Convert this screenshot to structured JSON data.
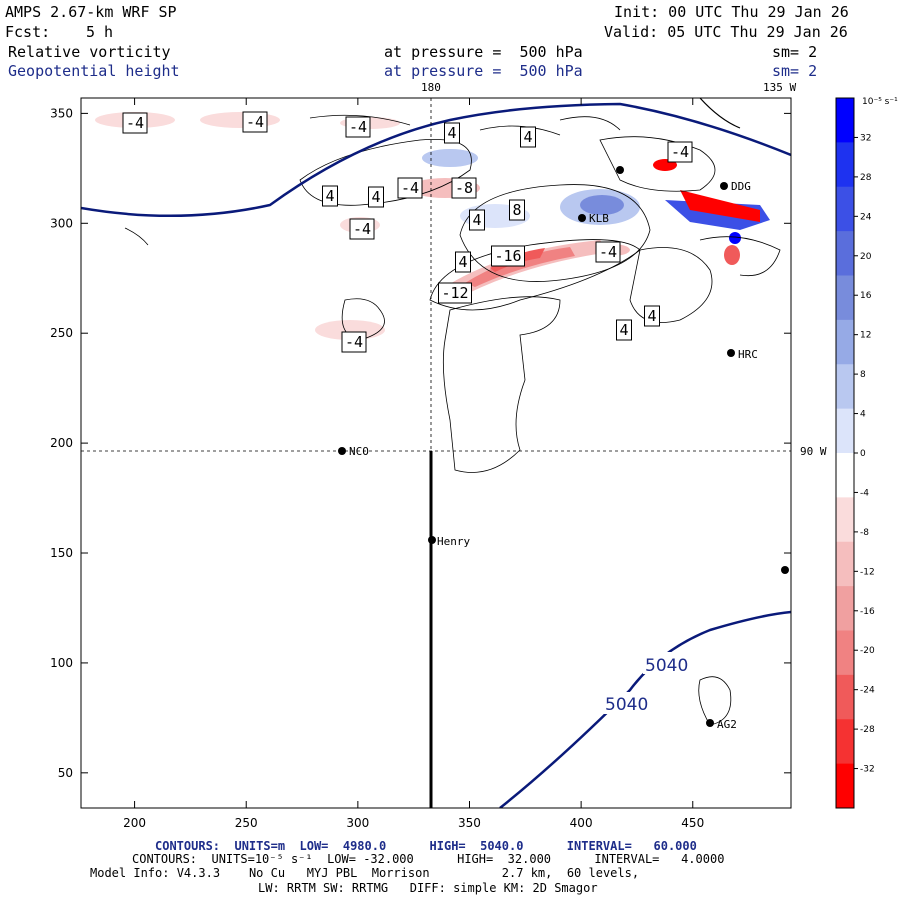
{
  "header": {
    "model": "AMPS 2.67-km WRF SP",
    "init": "Init: 00 UTC Thu 29 Jan 26",
    "fcst_label": "Fcst:",
    "fcst_value": "5 h",
    "valid": "Valid: 05 UTC Thu 29 Jan 26",
    "field1": "Relative vorticity",
    "field1_level": "at pressure =  500 hPa",
    "field1_sm": "sm= 2",
    "field2": "Geopotential height",
    "field2_level": "at pressure =  500 hPa",
    "field2_sm": "sm= 2"
  },
  "map_labels": {
    "lon_180": "180",
    "lon_135w": "135 W",
    "lon_90w": "90 W",
    "stations": [
      "NCO",
      "Henry",
      "HRC",
      "AG2",
      "KLB",
      "DDG"
    ]
  },
  "footer": {
    "line1": "CONTOURS:  UNITS=m  LOW=  4980.0      HIGH=  5040.0      INTERVAL=   60.000",
    "line2": "CONTOURS:  UNITS=10⁻⁵ s⁻¹  LOW= -32.000      HIGH=  32.000      INTERVAL=   4.0000",
    "line3": "Model Info: V4.3.3    No Cu   MYJ PBL  Morrison          2.7 km,  60 levels,",
    "line4": "LW: RRTM SW: RRTMG   DIFF: simple KM: 2D Smagor"
  },
  "colorbar": {
    "unit": "10⁻⁵ s⁻¹",
    "ticks": [
      32,
      28,
      24,
      20,
      16,
      12,
      8,
      4,
      0,
      -4,
      -8,
      -12,
      -16,
      -20,
      -24,
      -28,
      -32
    ],
    "colors": [
      "#0000ff",
      "#1e32f0",
      "#3c50e6",
      "#5a6edc",
      "#788cdc",
      "#96aae6",
      "#b9c8f0",
      "#dce4fa",
      "#ffffff",
      "#ffffff",
      "#fadcdc",
      "#f5bebe",
      "#f0a0a0",
      "#f08282",
      "#f05a5a",
      "#f53232",
      "#ff0000"
    ]
  },
  "chart_data": {
    "type": "heatmap",
    "title": "AMPS 2.67-km WRF SP — 500 hPa Relative vorticity and Geopotential height",
    "x_ticks": [
      200,
      250,
      300,
      350,
      400,
      450
    ],
    "y_ticks": [
      50,
      100,
      150,
      200,
      250,
      300,
      350
    ],
    "xlim": [
      176,
      494
    ],
    "ylim": [
      34,
      357
    ],
    "height_contour_label": "5040",
    "vorticity_labels": [
      "-4",
      "-4",
      "-4",
      "4",
      "4",
      "-4",
      "-4",
      "-8",
      "4",
      "4",
      "-4",
      "4",
      "8",
      "-16",
      "-4",
      "4",
      "-12",
      "-4",
      "4",
      "4",
      "-4"
    ]
  }
}
